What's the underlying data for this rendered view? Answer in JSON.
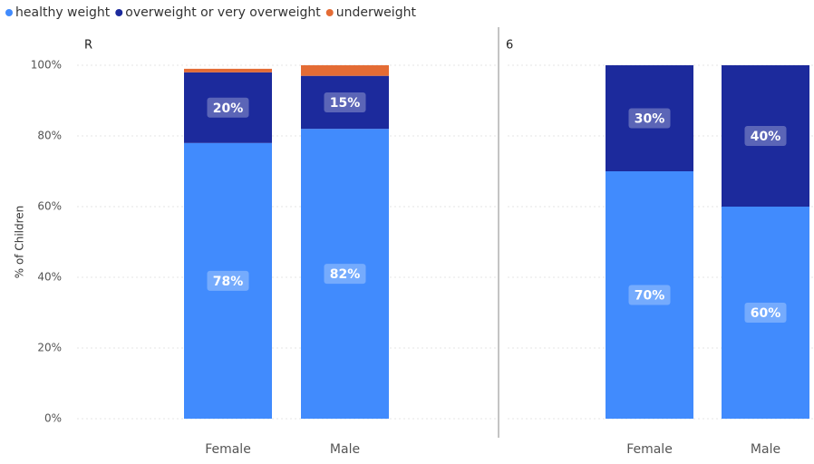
{
  "chart_data": {
    "type": "bar",
    "stacked": true,
    "y_label": "% of Children",
    "ylim": [
      0,
      100
    ],
    "yticks": [
      {
        "value": 0,
        "label": "0%"
      },
      {
        "value": 20,
        "label": "20%"
      },
      {
        "value": 40,
        "label": "40%"
      },
      {
        "value": 60,
        "label": "60%"
      },
      {
        "value": 80,
        "label": "80%"
      },
      {
        "value": 100,
        "label": "100%"
      }
    ],
    "grid": true,
    "legend": "top-left",
    "series": [
      {
        "name": "healthy weight",
        "color": "#418bfd"
      },
      {
        "name": "overweight or very overweight",
        "color": "#1c2a9c"
      },
      {
        "name": "underweight",
        "color": "#e46c35"
      }
    ],
    "panels": [
      {
        "title": "R",
        "categories": [
          "Female",
          "Male"
        ],
        "values": [
          [
            78,
            82
          ],
          [
            20,
            15
          ],
          [
            1,
            3
          ]
        ],
        "value_labels": [
          [
            "78%",
            "82%"
          ],
          [
            "20%",
            "15%"
          ],
          [
            null,
            null
          ]
        ]
      },
      {
        "title": "6",
        "categories": [
          "Female",
          "Male"
        ],
        "values": [
          [
            70,
            60
          ],
          [
            30,
            40
          ],
          [
            0,
            0
          ]
        ],
        "value_labels": [
          [
            "70%",
            "60%"
          ],
          [
            "30%",
            "40%"
          ],
          [
            null,
            null
          ]
        ]
      }
    ]
  }
}
